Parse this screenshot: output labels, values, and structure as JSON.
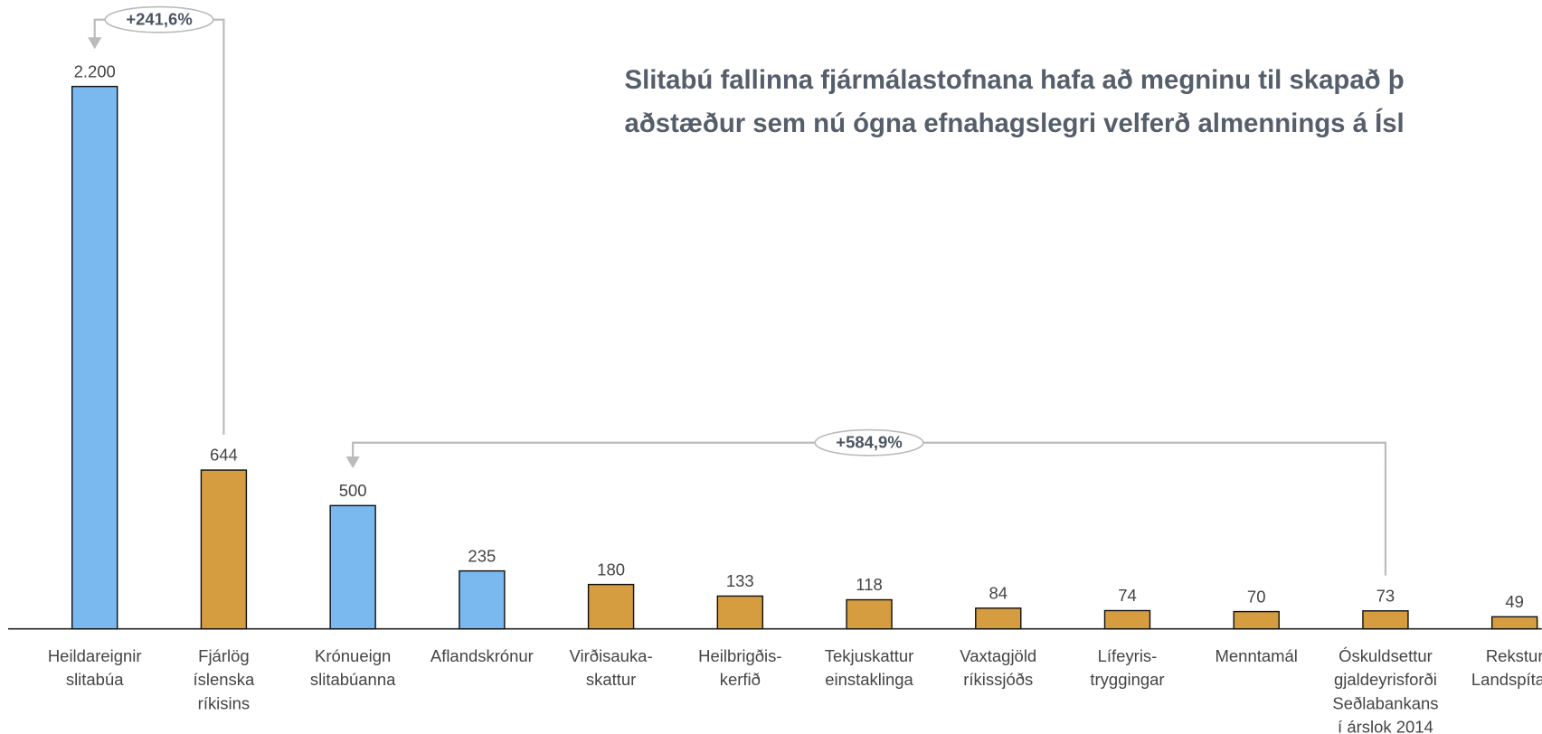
{
  "chart_data": {
    "type": "bar",
    "title": [
      "Slitabú fallinna fjármálastofnana hafa að megninu til skapað þ",
      "aðstæður sem nú ógna efnahagslegri velferð almennings á Ísl"
    ],
    "categories": [
      [
        "Heildareignir",
        "slitabúa"
      ],
      [
        "Fjárlög",
        "íslenska",
        "ríkisins"
      ],
      [
        "Krónueign",
        "slitabúanna"
      ],
      [
        "Aflandskrónur"
      ],
      [
        "Virðisauka-",
        "skattur"
      ],
      [
        "Heilbrigðis-",
        "kerfið"
      ],
      [
        "Tekjuskattur",
        "einstaklinga"
      ],
      [
        "Vaxtagjöld",
        "ríkissjóðs"
      ],
      [
        "Lífeyris-",
        "tryggingar"
      ],
      [
        "Menntamál"
      ],
      [
        "Óskuldsettur",
        "gjaldeyrisforði",
        "Seðlabankans",
        "í árslok 2014"
      ],
      [
        "Rekstur",
        "Landspítala"
      ]
    ],
    "values": [
      2200,
      644,
      500,
      235,
      180,
      133,
      118,
      84,
      74,
      70,
      73,
      49
    ],
    "value_labels": [
      "2.200",
      "644",
      "500",
      "235",
      "180",
      "133",
      "118",
      "84",
      "74",
      "70",
      "73",
      "49"
    ],
    "colors": [
      "#7ab8f0",
      "#d69c40",
      "#7ab8f0",
      "#7ab8f0",
      "#d69c40",
      "#d69c40",
      "#d69c40",
      "#d69c40",
      "#d69c40",
      "#d69c40",
      "#d69c40",
      "#d69c40"
    ],
    "ylim": [
      0,
      2200
    ],
    "annotations": [
      {
        "text": "+241,6%",
        "from": 0,
        "to": 1
      },
      {
        "text": "+584,9%",
        "from": 2,
        "to": 10
      }
    ]
  }
}
